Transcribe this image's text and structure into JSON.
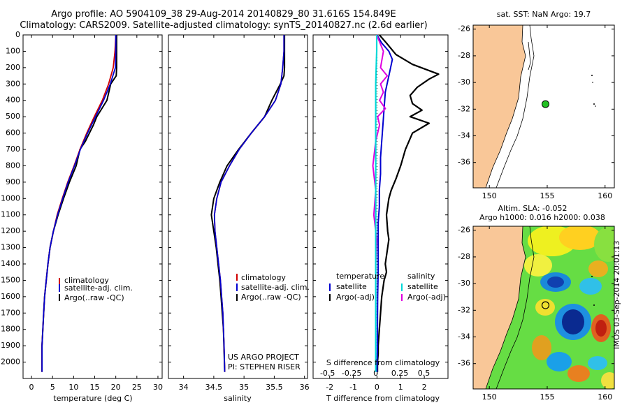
{
  "header": {
    "line1": "Argo profile: AO 5904109_38 29-Aug-2014 20140829_80 31.616S 154.849E",
    "line2": "Climatology: CARS2009. Satellite-adjusted climatology: synTS_20140827.nc (2.6d earlier)"
  },
  "colors": {
    "clim": "#d00000",
    "sat": "#0000d0",
    "argo": "#000000",
    "sal_sat": "#00d8d8",
    "sal_argo": "#e000e0",
    "land": "#f9c798"
  },
  "chart_data": [
    {
      "type": "line",
      "xlabel": "temperature (deg C)",
      "ylabel": "",
      "xlim": [
        -2,
        31
      ],
      "ylim": [
        2100,
        0
      ],
      "xticks": [
        "0",
        "5",
        "10",
        "15",
        "20",
        "25",
        "30"
      ],
      "yticks": [
        "0",
        "100",
        "200",
        "300",
        "400",
        "500",
        "600",
        "700",
        "800",
        "900",
        "1000",
        "1100",
        "1200",
        "1300",
        "1400",
        "1500",
        "1600",
        "1700",
        "1800",
        "1900",
        "2000"
      ],
      "legend": [
        "climatology",
        "satellite-adj. clim.",
        "Argo(..raw -QC)"
      ],
      "series": [
        {
          "name": "climatology",
          "x": [
            20.0,
            19.8,
            19.4,
            18.3,
            16.8,
            14.9,
            13.1,
            11.5,
            10.1,
            8.6,
            7.3,
            6.1,
            5.2,
            4.4,
            3.9,
            3.5,
            3.1,
            2.9,
            2.7,
            2.5,
            2.5
          ],
          "y": [
            0,
            100,
            200,
            300,
            400,
            500,
            600,
            700,
            800,
            900,
            1000,
            1100,
            1200,
            1300,
            1400,
            1500,
            1600,
            1700,
            1800,
            1900,
            2060
          ]
        },
        {
          "name": "satellite-adj. clim.",
          "x": [
            20.0,
            20.0,
            19.9,
            18.7,
            17.1,
            15.2,
            13.3,
            11.6,
            10.2,
            8.7,
            7.4,
            6.2,
            5.2,
            4.4,
            3.9,
            3.5,
            3.1,
            2.9,
            2.7,
            2.5,
            2.5
          ],
          "y": [
            0,
            100,
            200,
            300,
            400,
            500,
            600,
            700,
            800,
            900,
            1000,
            1100,
            1200,
            1300,
            1400,
            1500,
            1600,
            1700,
            1800,
            1900,
            2060
          ]
        },
        {
          "name": "Argo(..raw -QC)",
          "x": [
            20.2,
            20.2,
            20.2,
            20.1,
            18.8,
            17.9,
            16.7,
            15.5,
            14.7,
            12.8,
            11.5,
            10.6,
            9.0,
            7.6,
            6.3,
            5.2,
            4.4,
            3.9,
            3.5,
            3.1,
            2.9,
            2.7,
            2.5,
            2.5
          ],
          "y": [
            0,
            100,
            200,
            250,
            300,
            400,
            450,
            500,
            550,
            650,
            700,
            800,
            900,
            1000,
            1100,
            1200,
            1300,
            1400,
            1500,
            1600,
            1700,
            1800,
            1900,
            2060
          ]
        }
      ]
    },
    {
      "type": "line",
      "xlabel": "salinity",
      "xlim": [
        33.75,
        36.05
      ],
      "ylim": [
        2100,
        0
      ],
      "xticks": [
        "34",
        "34.5",
        "35",
        "35.5",
        "36"
      ],
      "legend": [
        "climatology",
        "satellite-adj. clim.",
        "Argo(..raw -QC)"
      ],
      "annotation": [
        "US ARGO PROJECT",
        "PI: STEPHEN RISER"
      ],
      "series": [
        {
          "name": "climatology",
          "x": [
            35.66,
            35.66,
            35.64,
            35.61,
            35.52,
            35.34,
            35.12,
            34.92,
            34.76,
            34.62,
            34.55,
            34.51,
            34.52,
            34.55,
            34.58,
            34.61,
            34.63,
            34.65,
            34.66,
            34.67,
            34.68
          ],
          "y": [
            0,
            100,
            200,
            300,
            400,
            500,
            600,
            700,
            800,
            900,
            1000,
            1100,
            1200,
            1300,
            1400,
            1500,
            1600,
            1700,
            1800,
            1900,
            2060
          ]
        },
        {
          "name": "satellite-adj. clim.",
          "x": [
            35.66,
            35.66,
            35.64,
            35.61,
            35.52,
            35.34,
            35.12,
            34.92,
            34.76,
            34.62,
            34.55,
            34.51,
            34.52,
            34.55,
            34.58,
            34.61,
            34.63,
            34.65,
            34.66,
            34.67,
            34.68
          ],
          "y": [
            0,
            100,
            200,
            300,
            400,
            500,
            600,
            700,
            800,
            900,
            1000,
            1100,
            1200,
            1300,
            1400,
            1500,
            1600,
            1700,
            1800,
            1900,
            2060
          ]
        },
        {
          "name": "Argo(..raw -QC)",
          "x": [
            35.67,
            35.67,
            35.67,
            35.66,
            35.6,
            35.46,
            35.34,
            35.12,
            34.91,
            34.72,
            34.6,
            34.5,
            34.46,
            34.5,
            34.54,
            34.57,
            34.6,
            34.62,
            34.64,
            34.66,
            34.68
          ],
          "y": [
            0,
            100,
            200,
            250,
            300,
            400,
            500,
            600,
            700,
            800,
            900,
            1000,
            1100,
            1200,
            1300,
            1400,
            1500,
            1600,
            1700,
            1800,
            2060
          ]
        }
      ]
    },
    {
      "type": "line",
      "xlabel": "T difference from climatology",
      "xlabel_top": "S difference from climatology",
      "xlim_T": [
        -2.7,
        3.0
      ],
      "xlim_S": [
        -0.65,
        0.75
      ],
      "ylim": [
        2100,
        0
      ],
      "xticks_T": [
        "-2",
        "-1",
        "0",
        "1",
        "2"
      ],
      "xticks_S": [
        "-0.5",
        "-0.25",
        "0",
        "0.25",
        "0.5"
      ],
      "legend_headers": [
        "temperature",
        "salinity"
      ],
      "legend": [
        "satellite",
        "Argo(-adj)",
        "satellite",
        "Argo(-adj)"
      ],
      "series": [
        {
          "name": "temperature satellite",
          "x": [
            0.0,
            0.2,
            0.5,
            0.65,
            0.5,
            0.35,
            0.3,
            0.25,
            0.2,
            0.15,
            0.15,
            0.1,
            0.1,
            0.05,
            0.05,
            0.05,
            0.03,
            0.02,
            0.02,
            0.0
          ],
          "y": [
            0,
            50,
            100,
            150,
            250,
            350,
            450,
            550,
            650,
            750,
            850,
            950,
            1050,
            1150,
            1300,
            1450,
            1600,
            1750,
            1900,
            2060
          ]
        },
        {
          "name": "temperature Argo(-adj)",
          "x": [
            0.1,
            0.4,
            0.8,
            1.5,
            2.6,
            2.2,
            1.7,
            1.4,
            1.5,
            1.9,
            1.4,
            2.2,
            1.5,
            1.2,
            1.0,
            0.8,
            0.6,
            0.5,
            0.4,
            0.45,
            0.5,
            0.45,
            0.35,
            0.4,
            0.3,
            0.2,
            0.15,
            0.1,
            0.05,
            0.05,
            0.02,
            0.02
          ],
          "y": [
            0,
            50,
            120,
            180,
            240,
            270,
            320,
            370,
            420,
            460,
            500,
            540,
            600,
            700,
            800,
            880,
            950,
            1000,
            1100,
            1200,
            1250,
            1300,
            1400,
            1450,
            1500,
            1600,
            1700,
            1800,
            1900,
            1950,
            2000,
            2060
          ]
        },
        {
          "name": "salinity satellite",
          "x": [
            0.01,
            0.01,
            0.0,
            0.0,
            0.0,
            0.0,
            0.0,
            0.0,
            0.0,
            0.0,
            0.0
          ],
          "y": [
            0,
            100,
            300,
            500,
            700,
            900,
            1100,
            1300,
            1500,
            1800,
            2060
          ]
        },
        {
          "name": "salinity Argo(-adj)",
          "x": [
            0.01,
            0.08,
            0.05,
            0.12,
            0.05,
            0.08,
            0.04,
            0.1,
            0.02,
            0.04,
            0.0,
            -0.03,
            0.0,
            -0.02,
            0.01,
            0.0,
            0.0,
            0.0,
            0.0,
            0.0,
            0.0
          ],
          "y": [
            0,
            100,
            200,
            250,
            300,
            350,
            400,
            450,
            500,
            550,
            650,
            800,
            950,
            1100,
            1250,
            1400,
            1550,
            1700,
            1850,
            1950,
            2060
          ]
        }
      ]
    }
  ],
  "map1": {
    "title": "sat. SST: NaN Argo: 19.7",
    "xticks": [
      "150",
      "155",
      "160"
    ],
    "yticks": [
      "-26",
      "-28",
      "-30",
      "-32",
      "-34",
      "-36"
    ],
    "lon_range": [
      148.6,
      160.8
    ],
    "lat_range": [
      -37.9,
      -25.7
    ],
    "float_lon": 154.85,
    "float_lat": -31.62
  },
  "map2": {
    "title1": "Altim. SLA: -0.052",
    "title2": "Argo h1000: 0.016 h2000: 0.038",
    "xticks": [
      "150",
      "155",
      "160"
    ],
    "yticks": [
      "-26",
      "-28",
      "-30",
      "-32",
      "-34",
      "-36"
    ],
    "float_lon": 154.85,
    "float_lat": -31.62
  },
  "side_text": "IMOS 03-Sep-2014 20:01:13"
}
